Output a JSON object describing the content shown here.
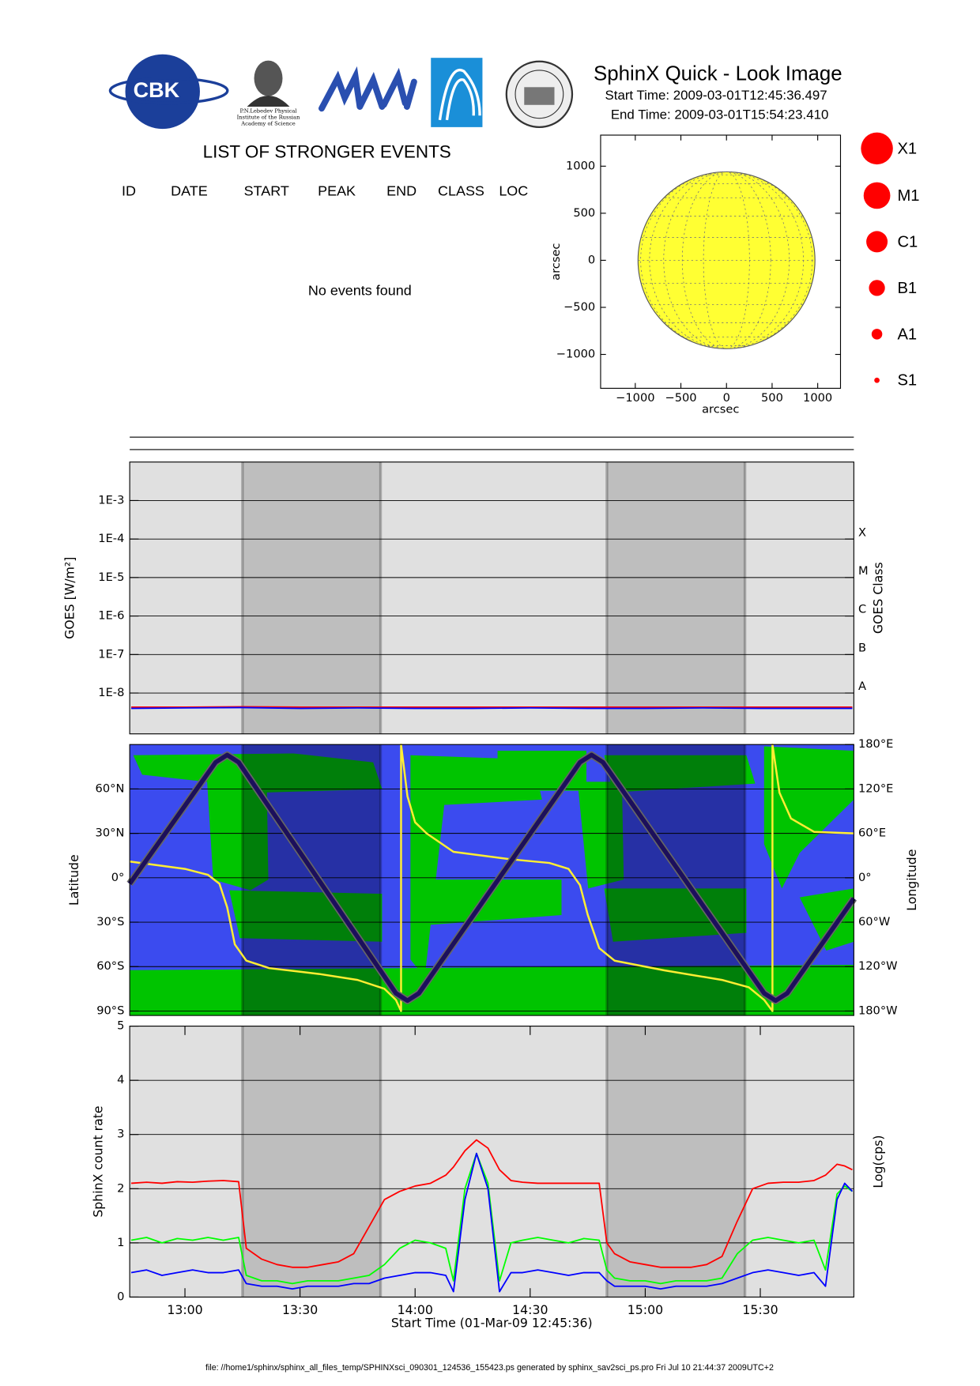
{
  "header": {
    "title": "SphinX Quick - Look Image",
    "start_time": "Start Time: 2009-03-01T12:45:36.497",
    "end_time": "End Time: 2009-03-01T15:54:23.410",
    "logo_cbk": "CBK",
    "logo_lebedev": [
      "P.N.Lebedev Physical",
      "Institute of the Russian",
      "Academy of Science"
    ]
  },
  "events": {
    "title": "LIST OF STRONGER EVENTS",
    "columns": [
      "ID",
      "DATE",
      "START",
      "PEAK",
      "END",
      "CLASS",
      "LOC"
    ],
    "message": "No events found"
  },
  "class_legend": [
    "X1",
    "M1",
    "C1",
    "B1",
    "A1",
    "S1"
  ],
  "footer": "file: //home1/sphinx/sphinx_all_files_temp/SPHINXsci_090301_124536_155423.ps generated by sphinx_sav2sci_ps.pro Fri Jul 10 21:44:37 2009UTC+2",
  "chart_data": [
    {
      "type": "disk",
      "xlabel": "arcsec",
      "ylabel": "arcsec",
      "xlim": [
        -1380,
        1250
      ],
      "ylim": [
        -1360,
        1330
      ],
      "xticks": [
        {
          "value": -1000,
          "label": "−1000"
        },
        {
          "value": -500,
          "label": "−500"
        },
        0,
        500,
        1000
      ],
      "yticks": [
        {
          "value": -1000,
          "label": "−1000"
        },
        {
          "value": -500,
          "label": "−500"
        },
        0,
        500,
        1000
      ],
      "disk_radius": 970,
      "color": "#ffff33"
    },
    {
      "type": "line",
      "ylabel": "GOES [W/m²]",
      "y2label": "GOES Class",
      "xlim": [
        "12:45:36",
        "15:54:23"
      ],
      "log_y": true,
      "ylim": [
        8.7e-10,
        0.01
      ],
      "yticks": [
        {
          "value": 0.001,
          "label": "1E-3"
        },
        {
          "value": 0.0001,
          "label": "1E-4"
        },
        {
          "value": 1e-05,
          "label": "1E-5"
        },
        {
          "value": 1e-06,
          "label": "1E-6"
        },
        {
          "value": 1e-07,
          "label": "1E-7"
        },
        {
          "value": 1e-08,
          "label": "1E-8"
        }
      ],
      "y2lim": [
        8.7e-10,
        0.01
      ],
      "y2ticks": [
        {
          "value": 0.0001,
          "label": "X"
        },
        {
          "value": 1e-05,
          "label": "M"
        },
        {
          "value": 1e-06,
          "label": "C"
        },
        {
          "value": 1e-07,
          "label": "B"
        },
        {
          "value": 1e-08,
          "label": "A"
        }
      ],
      "grid": true,
      "background": "#e0e0e0",
      "shade_color": "#bebebe",
      "shaded_intervals": [
        [
          "13:15",
          "13:51"
        ],
        [
          "14:50",
          "15:26"
        ]
      ],
      "x": [
        "12:46",
        "13:00",
        "13:15",
        "13:30",
        "13:45",
        "14:00",
        "14:15",
        "14:30",
        "14:45",
        "15:00",
        "15:15",
        "15:30",
        "15:45",
        "15:54"
      ],
      "series": [
        {
          "color": "#ff0000",
          "values": [
            4.3e-09,
            4.3e-09,
            4.4e-09,
            4.3e-09,
            4.3e-09,
            4.3e-09,
            4.3e-09,
            4.3e-09,
            4.3e-09,
            4.3e-09,
            4.3e-09,
            4.3e-09,
            4.3e-09,
            4.3e-09
          ]
        },
        {
          "color": "#0000ff",
          "values": [
            4e-09,
            4.1e-09,
            4.2e-09,
            4e-09,
            4.1e-09,
            4e-09,
            4e-09,
            4.1e-09,
            4e-09,
            4e-09,
            4.1e-09,
            4e-09,
            4e-09,
            4e-09
          ]
        }
      ]
    },
    {
      "type": "track",
      "ylabel": "Latitude",
      "y2label": "Longitude",
      "xlim": [
        "12:45:36",
        "15:54:23"
      ],
      "ylim": [
        -93,
        90
      ],
      "yticks": [
        {
          "value": 60,
          "label": "60°N"
        },
        {
          "value": 30,
          "label": "30°N"
        },
        {
          "value": 0,
          "label": "0°"
        },
        {
          "value": -30,
          "label": "30°S"
        },
        {
          "value": -60,
          "label": "60°S"
        },
        {
          "value": -90,
          "label": "90°S"
        }
      ],
      "y2lim": [
        -186,
        180
      ],
      "y2ticks": [
        {
          "value": 180,
          "label": "180°E"
        },
        {
          "value": 120,
          "label": "120°E"
        },
        {
          "value": 60,
          "label": "60°E"
        },
        {
          "value": 0,
          "label": "0°"
        },
        {
          "value": -60,
          "label": "60°W"
        },
        {
          "value": -120,
          "label": "120°W"
        },
        {
          "value": -180,
          "label": "180°W"
        }
      ],
      "grid": true,
      "background": "#3b4bef",
      "shade_color": "rgba(0,0,30,0.35)",
      "shaded_intervals": [
        [
          "13:15",
          "13:51"
        ],
        [
          "14:50",
          "15:26"
        ]
      ],
      "series": [
        {
          "color": "#ffee33",
          "axis": "y2",
          "x": [
            "12:45:36",
            "13:00",
            "13:06",
            "13:09",
            "13:11",
            "13:13",
            "13:16",
            "13:22",
            "13:35",
            "13:45",
            "13:52",
            "13:55",
            "13:56:20",
            "13:56:20",
            "13:58",
            "14:00",
            "14:03",
            "14:10",
            "14:25",
            "14:35",
            "14:40",
            "14:43",
            "14:45",
            "14:48",
            "14:52",
            "15:05",
            "15:20",
            "15:27",
            "15:31",
            "15:33:10",
            "15:33:10",
            "15:35",
            "15:38",
            "15:44",
            "15:54:23"
          ],
          "values": [
            22,
            12,
            4,
            -8,
            -40,
            -90,
            -112,
            -122,
            -130,
            -138,
            -150,
            -165,
            -180,
            180,
            110,
            75,
            60,
            35,
            25,
            20,
            12,
            -10,
            -50,
            -95,
            -112,
            -125,
            -138,
            -148,
            -165,
            -180,
            180,
            115,
            80,
            62,
            60
          ]
        },
        {
          "color": "#1c0f5c",
          "x": [
            "12:45:36",
            "13:08",
            "13:11",
            "13:14",
            "13:55",
            "13:58",
            "14:01",
            "14:43",
            "14:46",
            "14:49",
            "15:31",
            "15:34",
            "15:37",
            "15:54:23"
          ],
          "values": [
            -4,
            78,
            83,
            78,
            -78,
            -83,
            -78,
            78,
            83,
            78,
            -78,
            -83,
            -78,
            -14
          ]
        }
      ]
    },
    {
      "type": "line",
      "ylabel": "SphinX count rate",
      "y2label": "Log(cps)",
      "xlabel": "Start Time (01-Mar-09 12:45:36)",
      "xlim": [
        "12:45:36",
        "15:54:23"
      ],
      "xticks": [
        "13:00",
        "13:30",
        "14:00",
        "14:30",
        "15:00",
        "15:30"
      ],
      "ylim": [
        0,
        5
      ],
      "yticks": [
        0,
        1,
        2,
        3,
        4,
        5
      ],
      "grid": true,
      "background": "#e0e0e0",
      "shade_color": "#bebebe",
      "shaded_intervals": [
        [
          "13:15",
          "13:51"
        ],
        [
          "14:50",
          "15:26"
        ]
      ],
      "x": [
        "12:46",
        "12:50",
        "12:54",
        "12:58",
        "13:02",
        "13:06",
        "13:10",
        "13:14",
        "13:16",
        "13:20",
        "13:24",
        "13:28",
        "13:32",
        "13:36",
        "13:40",
        "13:44",
        "13:48",
        "13:52",
        "13:56",
        "14:00",
        "14:04",
        "14:08",
        "14:10",
        "14:13",
        "14:16",
        "14:19",
        "14:22",
        "14:25",
        "14:28",
        "14:32",
        "14:36",
        "14:40",
        "14:44",
        "14:48",
        "14:50",
        "14:52",
        "14:56",
        "15:00",
        "15:04",
        "15:08",
        "15:12",
        "15:16",
        "15:20",
        "15:24",
        "15:28",
        "15:32",
        "15:36",
        "15:40",
        "15:44",
        "15:47",
        "15:50",
        "15:52",
        "15:54"
      ],
      "series": [
        {
          "color": "#00ff00",
          "values": [
            1.05,
            1.1,
            1.0,
            1.08,
            1.05,
            1.1,
            1.05,
            1.1,
            0.4,
            0.3,
            0.3,
            0.25,
            0.3,
            0.3,
            0.3,
            0.35,
            0.4,
            0.6,
            0.9,
            1.05,
            1.0,
            0.9,
            0.3,
            2.0,
            2.65,
            2.1,
            0.3,
            1.0,
            1.05,
            1.1,
            1.05,
            1.0,
            1.08,
            1.05,
            0.5,
            0.35,
            0.3,
            0.3,
            0.25,
            0.3,
            0.3,
            0.3,
            0.35,
            0.8,
            1.05,
            1.1,
            1.05,
            1.0,
            1.05,
            0.5,
            1.9,
            2.05,
            1.95
          ]
        },
        {
          "color": "#0000ff",
          "values": [
            0.45,
            0.5,
            0.4,
            0.45,
            0.5,
            0.45,
            0.45,
            0.5,
            0.25,
            0.2,
            0.2,
            0.15,
            0.2,
            0.2,
            0.2,
            0.25,
            0.25,
            0.35,
            0.4,
            0.45,
            0.45,
            0.4,
            0.1,
            1.8,
            2.65,
            2.0,
            0.1,
            0.45,
            0.45,
            0.5,
            0.45,
            0.4,
            0.45,
            0.45,
            0.3,
            0.2,
            0.2,
            0.2,
            0.15,
            0.2,
            0.2,
            0.2,
            0.25,
            0.35,
            0.45,
            0.5,
            0.45,
            0.4,
            0.45,
            0.2,
            1.8,
            2.1,
            1.95
          ]
        },
        {
          "color": "#ff0000",
          "values": [
            2.1,
            2.12,
            2.1,
            2.13,
            2.12,
            2.14,
            2.15,
            2.13,
            0.9,
            0.7,
            0.6,
            0.55,
            0.55,
            0.6,
            0.65,
            0.8,
            1.3,
            1.8,
            1.95,
            2.05,
            2.1,
            2.25,
            2.4,
            2.7,
            2.9,
            2.75,
            2.35,
            2.15,
            2.12,
            2.1,
            2.1,
            2.1,
            2.1,
            2.1,
            1.0,
            0.8,
            0.65,
            0.6,
            0.55,
            0.55,
            0.55,
            0.6,
            0.75,
            1.4,
            2.0,
            2.1,
            2.12,
            2.12,
            2.15,
            2.25,
            2.45,
            2.42,
            2.35
          ]
        }
      ]
    }
  ]
}
